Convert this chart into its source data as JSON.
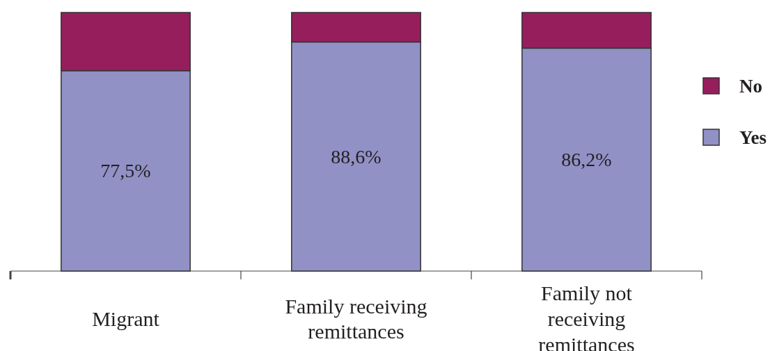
{
  "chart_data": {
    "type": "bar",
    "stacked": true,
    "categories": [
      "Migrant",
      "Family receiving remittances",
      "Family not receiving remittances"
    ],
    "series": [
      {
        "name": "Yes",
        "color": "#9191c6",
        "values": [
          77.5,
          88.6,
          86.2
        ],
        "value_labels": [
          "77,5%",
          "88,6%",
          "86,2%"
        ]
      },
      {
        "name": "No",
        "color": "#961e5c",
        "values": [
          22.5,
          11.4,
          13.8
        ]
      }
    ],
    "ylim": [
      0,
      100
    ],
    "tick_labels": "x",
    "legend": "right"
  }
}
